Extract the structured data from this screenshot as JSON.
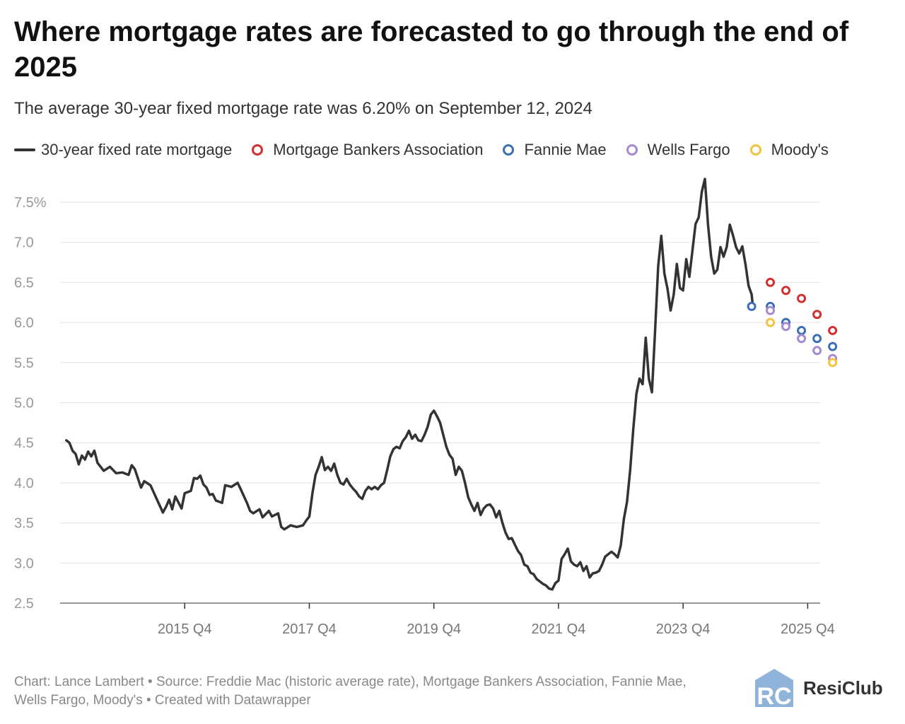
{
  "title": "Where mortgage rates are forecasted to go through the end of 2025",
  "subtitle": "The average 30-year fixed mortgage rate was 6.20% on September 12, 2024",
  "legend": [
    {
      "label": "30-year fixed rate mortgage",
      "kind": "line",
      "color": "#333333"
    },
    {
      "label": "Mortgage Bankers Association",
      "kind": "dot",
      "color": "#d32f2f"
    },
    {
      "label": "Fannie Mae",
      "kind": "dot",
      "color": "#3b6fb6"
    },
    {
      "label": "Wells Fargo",
      "kind": "dot",
      "color": "#a58ad1"
    },
    {
      "label": "Moody's",
      "kind": "dot",
      "color": "#f5c342"
    }
  ],
  "footer": "Chart: Lance Lambert • Source: Freddie Mac (historic average rate), Mortgage Bankers Association, Fannie Mae, Wells Fargo, Moody's • Created with Datawrapper",
  "brand": {
    "name": "ResiClub",
    "logo_letters": "RC"
  },
  "chart_data": {
    "type": "line",
    "ylabel": "",
    "xlabel": "",
    "ylim": [
      2.5,
      7.8
    ],
    "xlim": [
      2014.0,
      2026.2
    ],
    "y_ticks": [
      {
        "value": 7.5,
        "label": "7.5%"
      },
      {
        "value": 7.0,
        "label": "7.0"
      },
      {
        "value": 6.5,
        "label": "6.5"
      },
      {
        "value": 6.0,
        "label": "6.0"
      },
      {
        "value": 5.5,
        "label": "5.5"
      },
      {
        "value": 5.0,
        "label": "5.0"
      },
      {
        "value": 4.5,
        "label": "4.5"
      },
      {
        "value": 4.0,
        "label": "4.0"
      },
      {
        "value": 3.5,
        "label": "3.5"
      },
      {
        "value": 3.0,
        "label": "3.0"
      },
      {
        "value": 2.5,
        "label": "2.5"
      }
    ],
    "x_ticks": [
      {
        "value": 2016.0,
        "label": "2015 Q4"
      },
      {
        "value": 2018.0,
        "label": "2017 Q4"
      },
      {
        "value": 2020.0,
        "label": "2019 Q4"
      },
      {
        "value": 2022.0,
        "label": "2021 Q4"
      },
      {
        "value": 2024.0,
        "label": "2023 Q4"
      },
      {
        "value": 2026.0,
        "label": "2025 Q4"
      }
    ],
    "series": [
      {
        "name": "30-year fixed rate mortgage",
        "color": "#333333",
        "points": [
          [
            2014.1,
            4.53
          ],
          [
            2014.15,
            4.5
          ],
          [
            2014.2,
            4.4
          ],
          [
            2014.25,
            4.36
          ],
          [
            2014.3,
            4.23
          ],
          [
            2014.35,
            4.34
          ],
          [
            2014.4,
            4.29
          ],
          [
            2014.45,
            4.39
          ],
          [
            2014.5,
            4.33
          ],
          [
            2014.55,
            4.4
          ],
          [
            2014.6,
            4.25
          ],
          [
            2014.7,
            4.15
          ],
          [
            2014.8,
            4.2
          ],
          [
            2014.9,
            4.12
          ],
          [
            2015.0,
            4.13
          ],
          [
            2015.1,
            4.1
          ],
          [
            2015.15,
            4.22
          ],
          [
            2015.2,
            4.17
          ],
          [
            2015.3,
            3.94
          ],
          [
            2015.35,
            4.02
          ],
          [
            2015.45,
            3.97
          ],
          [
            2015.55,
            3.8
          ],
          [
            2015.65,
            3.63
          ],
          [
            2015.7,
            3.7
          ],
          [
            2015.75,
            3.79
          ],
          [
            2015.8,
            3.67
          ],
          [
            2015.85,
            3.83
          ],
          [
            2015.95,
            3.68
          ],
          [
            2016.0,
            3.87
          ],
          [
            2016.1,
            3.9
          ],
          [
            2016.15,
            4.06
          ],
          [
            2016.2,
            4.05
          ],
          [
            2016.25,
            4.09
          ],
          [
            2016.3,
            3.98
          ],
          [
            2016.35,
            3.94
          ],
          [
            2016.4,
            3.85
          ],
          [
            2016.45,
            3.86
          ],
          [
            2016.5,
            3.78
          ],
          [
            2016.6,
            3.75
          ],
          [
            2016.65,
            3.97
          ],
          [
            2016.75,
            3.95
          ],
          [
            2016.85,
            4.0
          ],
          [
            2016.9,
            3.92
          ],
          [
            2017.0,
            3.75
          ],
          [
            2017.05,
            3.65
          ],
          [
            2017.1,
            3.62
          ],
          [
            2017.2,
            3.67
          ],
          [
            2017.25,
            3.57
          ],
          [
            2017.35,
            3.65
          ],
          [
            2017.4,
            3.58
          ],
          [
            2017.5,
            3.62
          ],
          [
            2017.55,
            3.45
          ],
          [
            2017.6,
            3.42
          ],
          [
            2017.7,
            3.47
          ],
          [
            2017.8,
            3.45
          ],
          [
            2017.9,
            3.47
          ],
          [
            2017.95,
            3.53
          ],
          [
            2018.0,
            3.58
          ],
          [
            2018.05,
            3.87
          ],
          [
            2018.1,
            4.1
          ],
          [
            2018.15,
            4.2
          ],
          [
            2018.2,
            4.32
          ],
          [
            2018.25,
            4.16
          ],
          [
            2018.3,
            4.2
          ],
          [
            2018.35,
            4.15
          ],
          [
            2018.4,
            4.24
          ],
          [
            2018.45,
            4.1
          ],
          [
            2018.5,
            4.0
          ],
          [
            2018.55,
            3.98
          ],
          [
            2018.6,
            4.05
          ],
          [
            2018.65,
            3.98
          ],
          [
            2018.7,
            3.93
          ],
          [
            2018.75,
            3.89
          ],
          [
            2018.8,
            3.83
          ],
          [
            2018.85,
            3.8
          ],
          [
            2018.9,
            3.9
          ],
          [
            2018.95,
            3.95
          ],
          [
            2019.0,
            3.92
          ],
          [
            2019.05,
            3.95
          ],
          [
            2019.1,
            3.92
          ],
          [
            2019.15,
            3.97
          ],
          [
            2019.2,
            4.0
          ],
          [
            2019.25,
            4.16
          ],
          [
            2019.3,
            4.33
          ],
          [
            2019.35,
            4.42
          ],
          [
            2019.4,
            4.45
          ],
          [
            2019.45,
            4.43
          ],
          [
            2019.5,
            4.52
          ],
          [
            2019.55,
            4.57
          ],
          [
            2019.6,
            4.65
          ],
          [
            2019.65,
            4.55
          ],
          [
            2019.7,
            4.6
          ],
          [
            2019.75,
            4.53
          ],
          [
            2019.8,
            4.52
          ],
          [
            2019.85,
            4.6
          ],
          [
            2019.9,
            4.7
          ],
          [
            2019.95,
            4.85
          ],
          [
            2020.0,
            4.9
          ],
          [
            2020.05,
            4.83
          ],
          [
            2020.1,
            4.75
          ],
          [
            2020.15,
            4.6
          ],
          [
            2020.2,
            4.45
          ],
          [
            2020.25,
            4.35
          ],
          [
            2020.3,
            4.3
          ],
          [
            2020.35,
            4.1
          ],
          [
            2020.4,
            4.2
          ],
          [
            2020.45,
            4.15
          ],
          [
            2020.5,
            4.0
          ],
          [
            2020.55,
            3.82
          ],
          [
            2020.6,
            3.73
          ],
          [
            2020.65,
            3.65
          ],
          [
            2020.7,
            3.75
          ],
          [
            2020.75,
            3.6
          ],
          [
            2020.8,
            3.68
          ],
          [
            2020.85,
            3.72
          ],
          [
            2020.9,
            3.73
          ],
          [
            2020.95,
            3.68
          ],
          [
            2021.0,
            3.57
          ],
          [
            2021.05,
            3.65
          ],
          [
            2021.1,
            3.5
          ],
          [
            2021.15,
            3.38
          ],
          [
            2021.2,
            3.3
          ],
          [
            2021.25,
            3.31
          ],
          [
            2021.3,
            3.23
          ],
          [
            2021.35,
            3.15
          ],
          [
            2021.4,
            3.1
          ],
          [
            2021.45,
            2.98
          ],
          [
            2021.5,
            2.96
          ],
          [
            2021.55,
            2.88
          ],
          [
            2021.6,
            2.86
          ],
          [
            2021.65,
            2.8
          ],
          [
            2021.7,
            2.77
          ],
          [
            2021.75,
            2.74
          ],
          [
            2021.8,
            2.72
          ],
          [
            2021.85,
            2.68
          ],
          [
            2021.9,
            2.67
          ],
          [
            2021.95,
            2.75
          ],
          [
            2022.0,
            2.78
          ],
          [
            2022.05,
            3.05
          ],
          [
            2022.1,
            3.11
          ],
          [
            2022.15,
            3.18
          ],
          [
            2022.2,
            3.02
          ],
          [
            2022.25,
            2.98
          ],
          [
            2022.3,
            2.96
          ],
          [
            2022.35,
            3.01
          ],
          [
            2022.4,
            2.9
          ],
          [
            2022.45,
            2.96
          ],
          [
            2022.5,
            2.82
          ],
          [
            2022.55,
            2.87
          ],
          [
            2022.6,
            2.88
          ],
          [
            2022.65,
            2.9
          ],
          [
            2022.7,
            2.98
          ],
          [
            2022.75,
            3.08
          ],
          [
            2022.8,
            3.11
          ],
          [
            2022.85,
            3.14
          ],
          [
            2022.9,
            3.11
          ],
          [
            2022.95,
            3.07
          ],
          [
            2023.0,
            3.22
          ],
          [
            2023.05,
            3.55
          ],
          [
            2023.1,
            3.76
          ],
          [
            2023.15,
            4.16
          ],
          [
            2023.2,
            4.67
          ],
          [
            2023.25,
            5.11
          ],
          [
            2023.3,
            5.3
          ],
          [
            2023.35,
            5.23
          ],
          [
            2023.4,
            5.81
          ],
          [
            2023.45,
            5.3
          ],
          [
            2023.5,
            5.13
          ],
          [
            2023.55,
            5.89
          ],
          [
            2023.6,
            6.7
          ],
          [
            2023.65,
            7.08
          ],
          [
            2023.7,
            6.61
          ],
          [
            2023.75,
            6.42
          ],
          [
            2023.8,
            6.15
          ],
          [
            2023.85,
            6.35
          ],
          [
            2023.9,
            6.73
          ],
          [
            2023.95,
            6.43
          ],
          [
            2024.0,
            6.4
          ],
          [
            2024.05,
            6.79
          ],
          [
            2024.1,
            6.57
          ],
          [
            2024.15,
            6.9
          ],
          [
            2024.2,
            7.23
          ],
          [
            2024.25,
            7.31
          ],
          [
            2024.3,
            7.63
          ],
          [
            2024.35,
            7.79
          ],
          [
            2024.4,
            7.22
          ],
          [
            2024.45,
            6.82
          ],
          [
            2024.5,
            6.61
          ],
          [
            2024.55,
            6.66
          ],
          [
            2024.6,
            6.94
          ],
          [
            2024.65,
            6.82
          ],
          [
            2024.7,
            6.94
          ],
          [
            2024.75,
            7.22
          ],
          [
            2024.8,
            7.09
          ],
          [
            2024.85,
            6.94
          ],
          [
            2024.9,
            6.86
          ],
          [
            2024.95,
            6.95
          ],
          [
            2025.0,
            6.73
          ],
          [
            2025.05,
            6.46
          ],
          [
            2025.1,
            6.35
          ],
          [
            2025.12,
            6.2
          ]
        ]
      }
    ],
    "forecasts": [
      {
        "name": "Mortgage Bankers Association",
        "color": "#d32f2f",
        "points": [
          [
            2025.4,
            6.5
          ],
          [
            2025.65,
            6.4
          ],
          [
            2025.9,
            6.3
          ],
          [
            2026.15,
            6.1
          ],
          [
            2026.4,
            5.9
          ]
        ]
      },
      {
        "name": "Fannie Mae",
        "color": "#3b6fb6",
        "points": [
          [
            2025.1,
            6.2
          ],
          [
            2025.4,
            6.2
          ],
          [
            2025.65,
            6.0
          ],
          [
            2025.9,
            5.9
          ],
          [
            2026.15,
            5.8
          ],
          [
            2026.4,
            5.7
          ]
        ]
      },
      {
        "name": "Wells Fargo",
        "color": "#a58ad1",
        "points": [
          [
            2025.4,
            6.15
          ],
          [
            2025.65,
            5.95
          ],
          [
            2025.9,
            5.8
          ],
          [
            2026.15,
            5.65
          ],
          [
            2026.4,
            5.55
          ]
        ]
      },
      {
        "name": "Moody's",
        "color": "#f5c342",
        "points": [
          [
            2025.4,
            6.0
          ],
          [
            2026.4,
            5.5
          ]
        ]
      }
    ]
  }
}
